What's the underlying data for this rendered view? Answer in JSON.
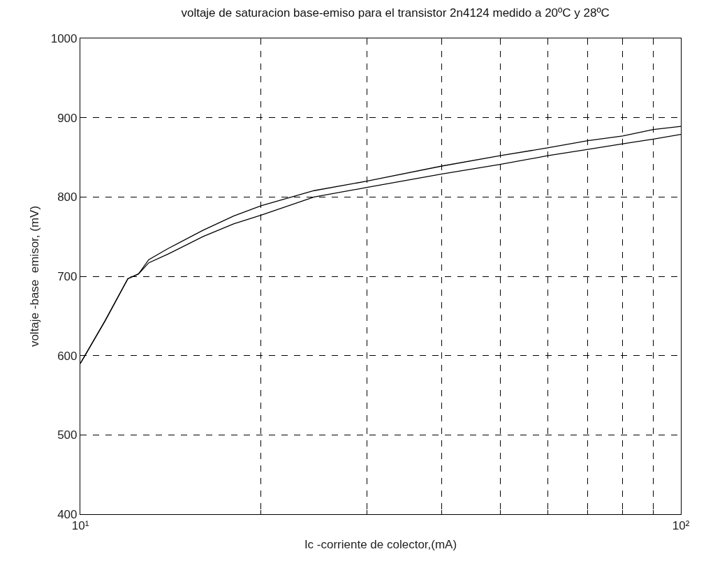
{
  "chart_data": {
    "type": "line",
    "title": "voltaje de saturacion base-emiso para el transistor 2n4124 medido a 20ºC y 28ºC",
    "xlabel": "Ic -corriente de colector,(mA)",
    "ylabel": "voltaje -base  emisor, (mV)",
    "log": "x",
    "grid": true,
    "line_style": "solid",
    "marker": "none",
    "x": [
      10,
      11,
      12,
      12.5,
      13,
      14,
      16,
      18,
      20,
      24.5,
      30,
      40,
      50,
      60,
      70,
      80,
      90,
      100
    ],
    "series": [
      {
        "color": "#000000",
        "values": [
          590,
          644,
          697,
          703,
          721,
          735,
          758,
          776,
          789,
          808,
          820,
          839,
          852,
          862,
          871,
          877,
          885,
          889
        ]
      },
      {
        "color": "#000000",
        "values": [
          590,
          644,
          697,
          703,
          717,
          728,
          750,
          766,
          777,
          800,
          812,
          829,
          841,
          852,
          860,
          867,
          873,
          879
        ]
      }
    ],
    "xlim": [
      10,
      100
    ],
    "xticks": [
      {
        "value": 10,
        "label": "10¹"
      },
      {
        "value": 20,
        "label": null
      },
      {
        "value": 30,
        "label": null
      },
      {
        "value": 40,
        "label": null
      },
      {
        "value": 50,
        "label": null
      },
      {
        "value": 60,
        "label": null
      },
      {
        "value": 70,
        "label": null
      },
      {
        "value": 80,
        "label": null
      },
      {
        "value": 90,
        "label": null
      },
      {
        "value": 100,
        "label": "10²"
      }
    ],
    "ylim": [
      400,
      1000
    ],
    "yticks": [
      400,
      500,
      600,
      700,
      800,
      900,
      1000
    ]
  }
}
